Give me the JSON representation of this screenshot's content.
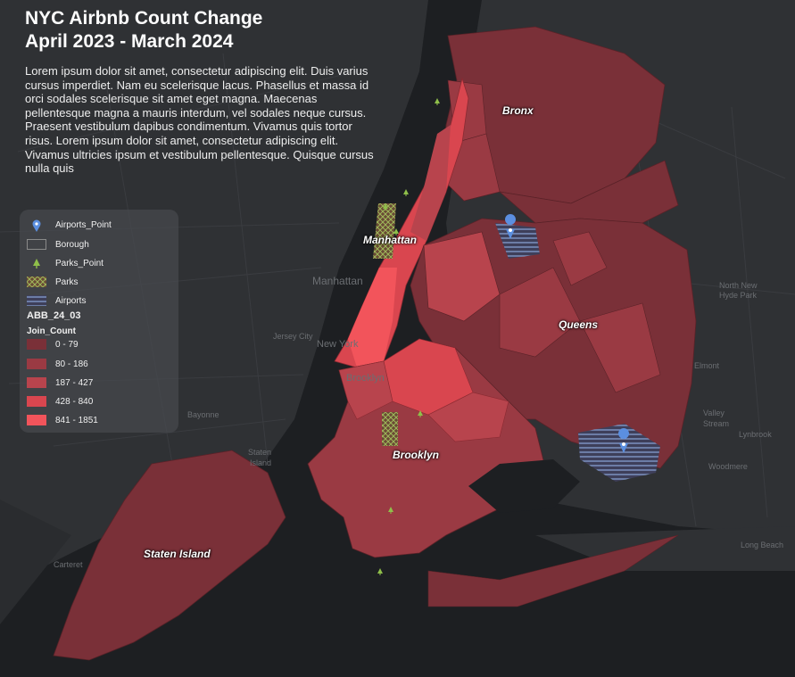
{
  "title": {
    "line1": "NYC Airbnb Count Change",
    "line2": "April 2023 - March 2024"
  },
  "description": "Lorem ipsum dolor sit amet, consectetur adipiscing elit. Duis varius cursus imperdiet. Nam eu scelerisque lacus. Phasellus et massa id orci sodales scelerisque sit amet eget magna. Maecenas pellentesque magna a mauris interdum, vel sodales neque cursus. Praesent vestibulum dapibus condimentum. Vivamus quis tortor risus. Lorem ipsum dolor sit amet, consectetur adipiscing elit. Vivamus ultricies ipsum et vestibulum pellentesque. Quisque cursus nulla quis",
  "legend": {
    "items": [
      {
        "label": "Airports_Point",
        "icon": "airport-pin-icon"
      },
      {
        "label": "Borough",
        "icon": "outline-swatch"
      },
      {
        "label": "Parks_Point",
        "icon": "tree-icon"
      },
      {
        "label": "Parks",
        "icon": "crosshatch-swatch"
      },
      {
        "label": "Airports",
        "icon": "horizontal-line-swatch"
      }
    ],
    "layer_title": "ABB_24_03",
    "field_title": "Join_Count",
    "classes": [
      {
        "label": "0 - 79",
        "color": "#7a3038"
      },
      {
        "label": "80 - 186",
        "color": "#9a3a43"
      },
      {
        "label": "187 - 427",
        "color": "#b8444d"
      },
      {
        "label": "428 - 840",
        "color": "#d9464f"
      },
      {
        "label": "841 - 1851",
        "color": "#f2545b"
      }
    ]
  },
  "boroughs": {
    "bronx": "Bronx",
    "manhattan": "Manhattan",
    "queens": "Queens",
    "brooklyn": "Brooklyn",
    "staten_island": "Staten Island"
  },
  "basemap_labels": {
    "manhattan": "Manhattan",
    "jersey_city": "Jersey City",
    "new_york": "New York",
    "brooklyn": "Brooklyn",
    "bayonne": "Bayonne",
    "staten_island_1": "Staten",
    "staten_island_2": "Island",
    "elmont": "Elmont",
    "valley_stream_1": "Valley",
    "valley_stream_2": "Stream",
    "lynbrook": "Lynbrook",
    "woodmere": "Woodmere",
    "long_beach": "Long Beach",
    "north_new_hyde_1": "North New",
    "north_new_hyde_2": "Hyde Park",
    "carteret": "Carteret"
  },
  "colors": {
    "background": "#1d1f22",
    "land": "#2f3134",
    "water": "#1d1f22",
    "park_green": "#8fbf4a",
    "airport_blue": "#5b8fe0"
  }
}
